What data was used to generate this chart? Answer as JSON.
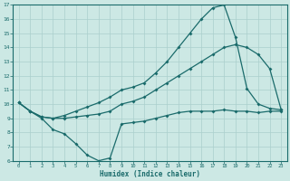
{
  "xlabel": "Humidex (Indice chaleur)",
  "xlim_min": -0.5,
  "xlim_max": 23.5,
  "ylim_min": 6,
  "ylim_max": 17,
  "yticks": [
    6,
    7,
    8,
    9,
    10,
    11,
    12,
    13,
    14,
    15,
    16,
    17
  ],
  "xticks": [
    0,
    1,
    2,
    3,
    4,
    5,
    6,
    7,
    8,
    9,
    10,
    11,
    12,
    13,
    14,
    15,
    16,
    17,
    18,
    19,
    20,
    21,
    22,
    23
  ],
  "bg_color": "#cce8e4",
  "line_color": "#1a6b6b",
  "grid_color": "#aacfcc",
  "line1_x": [
    0,
    1,
    2,
    3,
    4,
    5,
    6,
    7,
    8,
    9,
    10,
    11,
    12,
    13,
    14,
    15,
    16,
    17,
    18,
    19,
    20,
    21,
    22,
    23
  ],
  "line1_y": [
    10.1,
    9.5,
    9.0,
    8.2,
    7.9,
    7.2,
    6.4,
    6.0,
    6.2,
    8.6,
    8.7,
    8.8,
    9.0,
    9.2,
    9.4,
    9.5,
    9.5,
    9.5,
    9.6,
    9.5,
    9.5,
    9.4,
    9.5,
    9.5
  ],
  "line2_x": [
    0,
    1,
    2,
    3,
    4,
    5,
    6,
    7,
    8,
    9,
    10,
    11,
    12,
    13,
    14,
    15,
    16,
    17,
    18,
    19,
    20,
    21,
    22,
    23
  ],
  "line2_y": [
    10.1,
    9.5,
    9.1,
    9.0,
    9.0,
    9.1,
    9.2,
    9.3,
    9.5,
    10.0,
    10.2,
    10.5,
    11.0,
    11.5,
    12.0,
    12.5,
    13.0,
    13.5,
    14.0,
    14.2,
    14.0,
    13.5,
    12.5,
    9.6
  ],
  "line3_x": [
    0,
    1,
    2,
    3,
    4,
    5,
    6,
    7,
    8,
    9,
    10,
    11,
    12,
    13,
    14,
    15,
    16,
    17,
    18,
    19,
    20,
    21,
    22,
    23
  ],
  "line3_y": [
    10.1,
    9.5,
    9.1,
    9.0,
    9.2,
    9.5,
    9.8,
    10.1,
    10.5,
    11.0,
    11.2,
    11.5,
    12.2,
    13.0,
    14.0,
    15.0,
    16.0,
    16.8,
    17.0,
    14.7,
    11.1,
    10.0,
    9.7,
    9.6
  ]
}
